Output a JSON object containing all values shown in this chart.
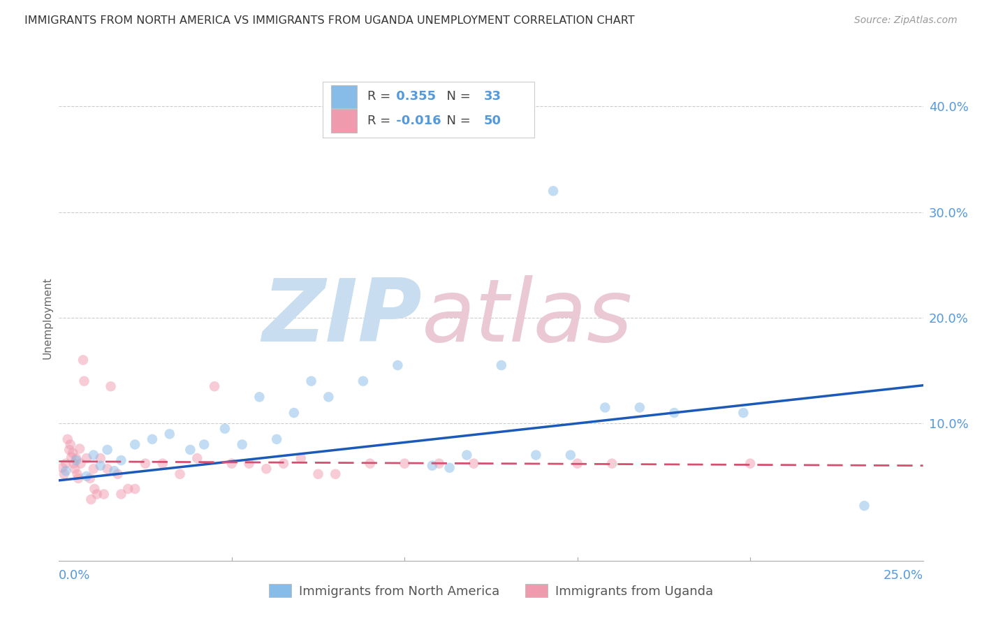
{
  "title": "IMMIGRANTS FROM NORTH AMERICA VS IMMIGRANTS FROM UGANDA UNEMPLOYMENT CORRELATION CHART",
  "source": "Source: ZipAtlas.com",
  "ylabel": "Unemployment",
  "legend_blue_r": "0.355",
  "legend_blue_n": "33",
  "legend_pink_r": "-0.016",
  "legend_pink_n": "50",
  "legend_label_blue": "Immigrants from North America",
  "legend_label_pink": "Immigrants from Uganda",
  "xlim": [
    0.0,
    0.25
  ],
  "ylim": [
    -0.03,
    0.43
  ],
  "ytick_values": [
    0.0,
    0.1,
    0.2,
    0.3,
    0.4
  ],
  "ytick_labels": [
    "",
    "10.0%",
    "20.0%",
    "30.0%",
    "40.0%"
  ],
  "blue_scatter": [
    [
      0.002,
      0.055
    ],
    [
      0.005,
      0.065
    ],
    [
      0.008,
      0.05
    ],
    [
      0.01,
      0.07
    ],
    [
      0.012,
      0.06
    ],
    [
      0.014,
      0.075
    ],
    [
      0.016,
      0.055
    ],
    [
      0.018,
      0.065
    ],
    [
      0.022,
      0.08
    ],
    [
      0.027,
      0.085
    ],
    [
      0.032,
      0.09
    ],
    [
      0.038,
      0.075
    ],
    [
      0.042,
      0.08
    ],
    [
      0.048,
      0.095
    ],
    [
      0.053,
      0.08
    ],
    [
      0.058,
      0.125
    ],
    [
      0.063,
      0.085
    ],
    [
      0.068,
      0.11
    ],
    [
      0.073,
      0.14
    ],
    [
      0.078,
      0.125
    ],
    [
      0.088,
      0.14
    ],
    [
      0.098,
      0.155
    ],
    [
      0.108,
      0.06
    ],
    [
      0.113,
      0.058
    ],
    [
      0.118,
      0.07
    ],
    [
      0.128,
      0.155
    ],
    [
      0.138,
      0.07
    ],
    [
      0.148,
      0.07
    ],
    [
      0.158,
      0.115
    ],
    [
      0.168,
      0.115
    ],
    [
      0.178,
      0.11
    ],
    [
      0.198,
      0.11
    ],
    [
      0.233,
      0.022
    ]
  ],
  "blue_outlier": [
    0.143,
    0.32
  ],
  "pink_scatter": [
    [
      0.001,
      0.058
    ],
    [
      0.0015,
      0.052
    ],
    [
      0.002,
      0.062
    ],
    [
      0.0025,
      0.085
    ],
    [
      0.003,
      0.075
    ],
    [
      0.0033,
      0.08
    ],
    [
      0.0036,
      0.068
    ],
    [
      0.004,
      0.072
    ],
    [
      0.0043,
      0.062
    ],
    [
      0.0046,
      0.057
    ],
    [
      0.005,
      0.067
    ],
    [
      0.0053,
      0.052
    ],
    [
      0.0056,
      0.048
    ],
    [
      0.006,
      0.076
    ],
    [
      0.0063,
      0.062
    ],
    [
      0.007,
      0.16
    ],
    [
      0.0073,
      0.14
    ],
    [
      0.008,
      0.067
    ],
    [
      0.009,
      0.048
    ],
    [
      0.0093,
      0.028
    ],
    [
      0.01,
      0.057
    ],
    [
      0.0103,
      0.038
    ],
    [
      0.011,
      0.033
    ],
    [
      0.012,
      0.067
    ],
    [
      0.013,
      0.033
    ],
    [
      0.014,
      0.057
    ],
    [
      0.015,
      0.135
    ],
    [
      0.017,
      0.052
    ],
    [
      0.018,
      0.033
    ],
    [
      0.02,
      0.038
    ],
    [
      0.022,
      0.038
    ],
    [
      0.025,
      0.062
    ],
    [
      0.03,
      0.062
    ],
    [
      0.035,
      0.052
    ],
    [
      0.04,
      0.067
    ],
    [
      0.045,
      0.135
    ],
    [
      0.05,
      0.062
    ],
    [
      0.055,
      0.062
    ],
    [
      0.06,
      0.057
    ],
    [
      0.065,
      0.062
    ],
    [
      0.07,
      0.067
    ],
    [
      0.075,
      0.052
    ],
    [
      0.08,
      0.052
    ],
    [
      0.09,
      0.062
    ],
    [
      0.1,
      0.062
    ],
    [
      0.11,
      0.062
    ],
    [
      0.12,
      0.062
    ],
    [
      0.15,
      0.062
    ],
    [
      0.16,
      0.062
    ],
    [
      0.2,
      0.062
    ]
  ],
  "blue_line_x": [
    0.0,
    0.25
  ],
  "blue_line_y": [
    0.046,
    0.136
  ],
  "pink_line_x": [
    0.0,
    0.25
  ],
  "pink_line_y": [
    0.064,
    0.06
  ],
  "scatter_alpha": 0.5,
  "scatter_size": 110,
  "blue_color": "#87BCE8",
  "pink_color": "#F09AAE",
  "blue_line_color": "#1B5AB8",
  "pink_line_color": "#D45070",
  "grid_color": "#CCCCCC",
  "title_color": "#333333",
  "axis_color": "#5599DD",
  "watermark_zip_color": "#C8DDEF",
  "watermark_atlas_color": "#EAC8D4",
  "source_color": "#999999"
}
